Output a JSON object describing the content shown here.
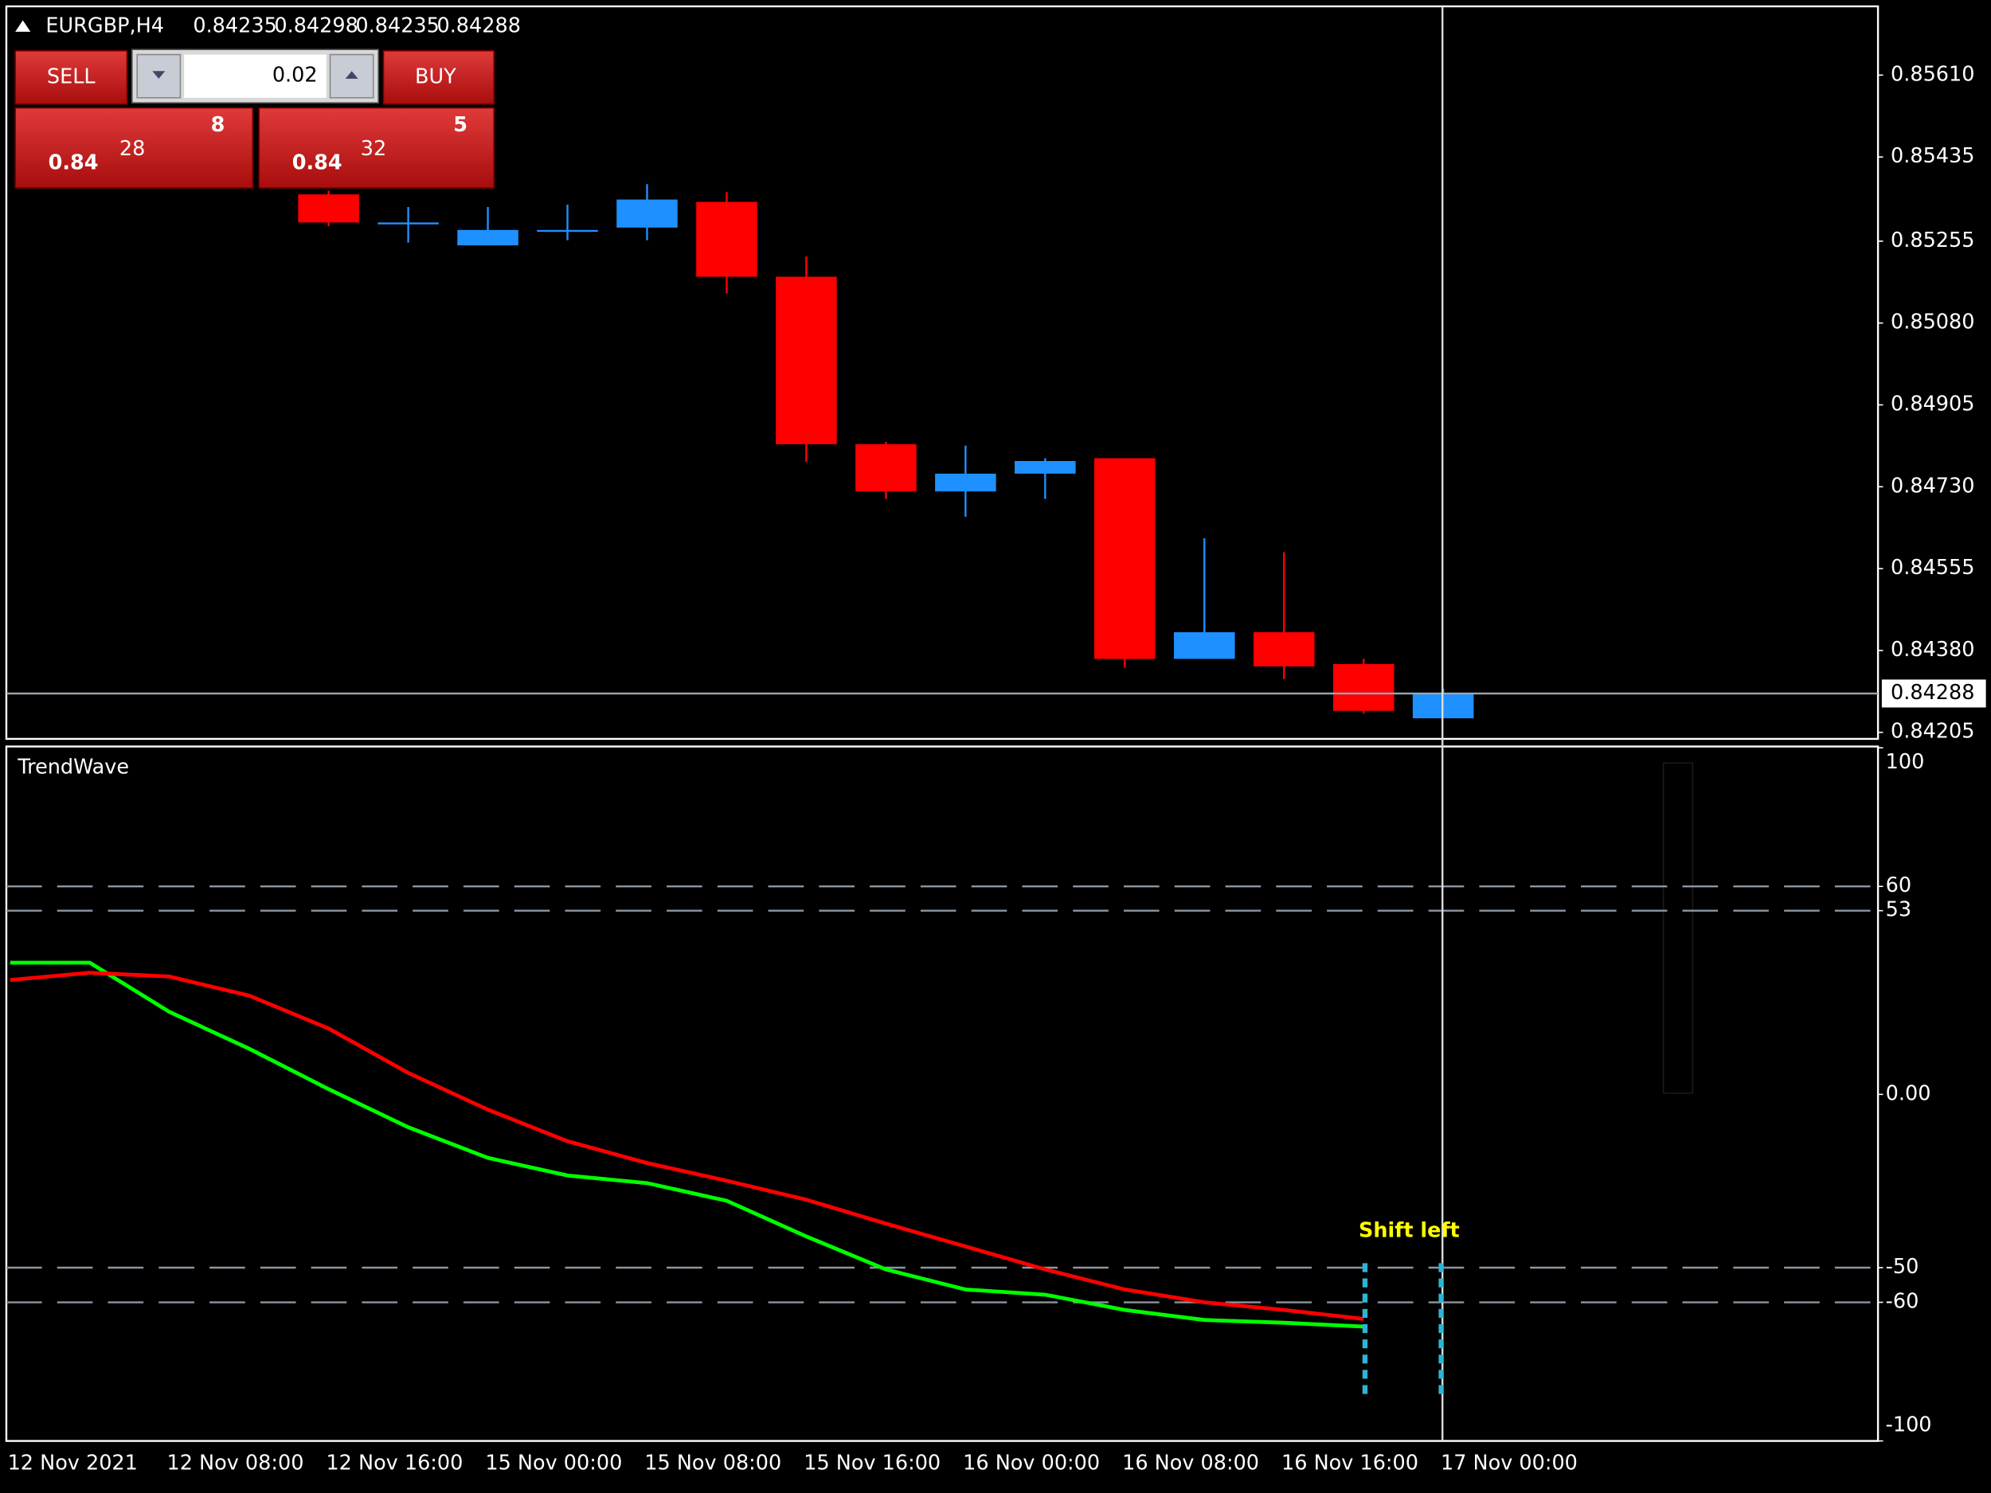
{
  "chart_data": [
    {
      "type": "candlestick",
      "symbol": "EURGBP,H4",
      "categories": [
        "12 Nov 2021",
        null,
        "12 Nov 08:00",
        null,
        "12 Nov 16:00",
        null,
        "15 Nov 00:00",
        null,
        "15 Nov 08:00",
        null,
        "15 Nov 16:00",
        null,
        "16 Nov 00:00",
        null,
        "16 Nov 08:00",
        null,
        "16 Nov 16:00",
        null,
        "17 Nov 00:00"
      ],
      "open": [
        null,
        null,
        null,
        null,
        0.85355,
        0.85295,
        0.85246,
        0.85279,
        0.85284,
        0.85339,
        0.85179,
        0.84821,
        0.8472,
        0.84758,
        0.84791,
        0.84362,
        0.84419,
        0.84351,
        0.84235
      ],
      "high": [
        null,
        null,
        null,
        null,
        0.85363,
        0.85328,
        0.85328,
        0.85333,
        0.85377,
        0.8536,
        0.85222,
        0.84826,
        0.84818,
        0.84791,
        0.84791,
        0.8462,
        0.8459,
        0.84362,
        0.84298
      ],
      "low": [
        null,
        null,
        null,
        null,
        0.85287,
        0.85252,
        0.85246,
        0.85257,
        0.85257,
        0.85143,
        0.84783,
        0.84704,
        0.84666,
        0.84704,
        0.84343,
        0.84362,
        0.84319,
        0.84245,
        0.84235
      ],
      "close": [
        null,
        null,
        null,
        null,
        0.85295,
        0.85295,
        0.85279,
        0.85279,
        0.85344,
        0.85179,
        0.84821,
        0.8472,
        0.84758,
        0.84785,
        0.84362,
        0.84419,
        0.84346,
        0.84251,
        0.84288
      ],
      "up_color": "#1e90ff",
      "down_color": "#ff0000",
      "ylim": [
        0.84191,
        0.85757
      ],
      "yticks": [
        {
          "value": 0.8561,
          "label": "0.85610"
        },
        0.85435,
        0.85255,
        {
          "value": 0.8508,
          "label": "0.85080"
        },
        0.84905,
        {
          "value": 0.8473,
          "label": "0.84730"
        },
        0.84555,
        {
          "value": 0.8438,
          "label": "0.84380"
        },
        0.84205
      ]
    },
    {
      "type": "line",
      "title": "TrendWave",
      "series": [
        {
          "color": "#00ff00",
          "values": [
            38,
            38,
            23.8,
            13.2,
            1.5,
            -9.5,
            -18.3,
            -23.4,
            -25.6,
            -30.7,
            -41,
            -50.5,
            -56.3,
            -57.8,
            -62.2,
            -65.1,
            -65.9,
            -67,
            null
          ]
        },
        {
          "color": "#ff0000",
          "values": [
            33,
            35.1,
            34,
            28.5,
            19,
            6.2,
            -4.4,
            -13.5,
            -19.8,
            -24.9,
            -30.4,
            -37.3,
            -43.9,
            -50.5,
            -56.3,
            -60,
            -62.2,
            -64.8,
            null
          ]
        }
      ],
      "ylim": [
        -100,
        100
      ],
      "yticks": [
        100,
        60,
        53,
        {
          "value": 0,
          "label": "0.00"
        },
        -50,
        -60,
        -100
      ],
      "levels": [
        60,
        53,
        -50,
        -60
      ],
      "annotation": "Shift left"
    }
  ],
  "trade_panel": {
    "sell_label": "SELL",
    "buy_label": "BUY",
    "lot": "0.02",
    "bid": {
      "prefix": "0.84",
      "big": "28",
      "small": "8"
    },
    "ask": {
      "prefix": "0.84",
      "big": "32",
      "small": "5"
    }
  }
}
